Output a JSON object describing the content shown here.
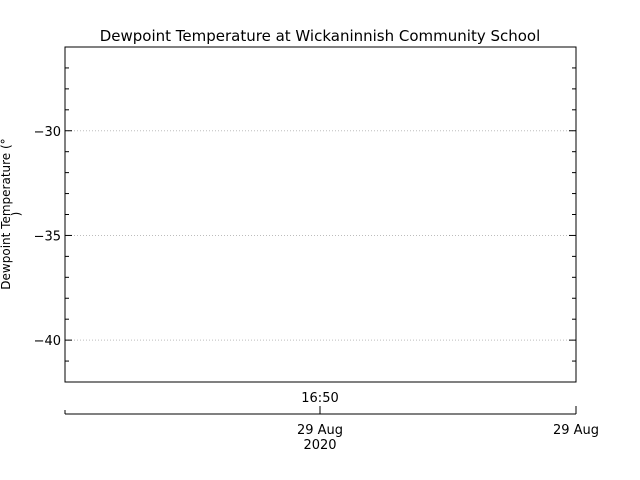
{
  "chart_data": {
    "type": "line",
    "title": "Dewpoint Temperature at Wickaninnish Community School",
    "ylabel_line1": "Dewpoint Temperature (°",
    "ylabel_line2": ")",
    "xlabel": "",
    "ylim": [
      -42,
      -26
    ],
    "y_major_ticks": [
      -30,
      -35,
      -40
    ],
    "y_tick_labels": [
      "−30",
      "−35",
      "−40"
    ],
    "grid": true,
    "x_time_label": "16:50",
    "x_date_labels": [
      {
        "line1": "29 Aug",
        "line2": "2020"
      },
      {
        "line1": "29 Aug",
        "line2": ""
      }
    ],
    "series": []
  }
}
